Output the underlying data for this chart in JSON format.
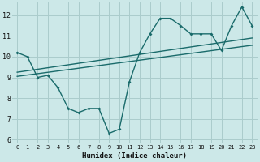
{
  "background_color": "#cce8e8",
  "grid_color": "#aacccc",
  "line_color": "#1a6b6b",
  "xlabel": "Humidex (Indice chaleur)",
  "xlim": [
    -0.5,
    23.5
  ],
  "ylim": [
    5.8,
    12.6
  ],
  "xticks": [
    0,
    1,
    2,
    3,
    4,
    5,
    6,
    7,
    8,
    9,
    10,
    11,
    12,
    13,
    14,
    15,
    16,
    17,
    18,
    19,
    20,
    21,
    22,
    23
  ],
  "yticks": [
    6,
    7,
    8,
    9,
    10,
    11,
    12
  ],
  "line1_x": [
    0,
    1,
    2,
    3,
    4,
    5,
    6,
    7,
    8,
    9,
    10,
    11,
    12,
    13,
    14,
    15,
    16,
    17,
    18,
    19,
    20,
    21,
    22,
    23
  ],
  "line1_y": [
    10.2,
    10.0,
    9.0,
    9.1,
    8.5,
    7.5,
    7.3,
    7.5,
    7.5,
    6.3,
    6.5,
    8.8,
    10.2,
    11.1,
    11.85,
    11.85,
    11.5,
    11.1,
    11.1,
    11.1,
    10.3,
    11.5,
    12.4,
    11.5
  ],
  "line2_x": [
    0,
    23
  ],
  "line2_y": [
    9.05,
    10.55
  ],
  "line3_x": [
    0,
    23
  ],
  "line3_y": [
    9.25,
    10.9
  ]
}
